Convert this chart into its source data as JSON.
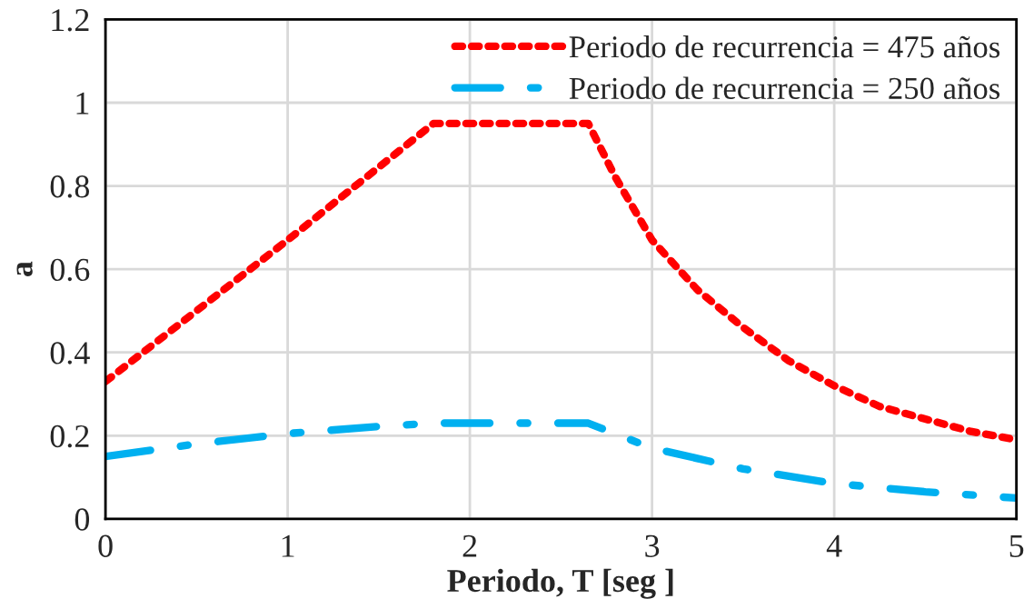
{
  "chart_data": {
    "type": "line",
    "xlabel": "Periodo, T [seg ]",
    "ylabel": "a",
    "xlim": [
      0,
      5
    ],
    "xticks": [
      0,
      1,
      2,
      3,
      4,
      5
    ],
    "ylim": [
      0,
      1.2
    ],
    "yticks": [
      0,
      0.2,
      0.4,
      0.6,
      0.8,
      1,
      1.2
    ],
    "grid": true,
    "legend": "top right",
    "marker": "none",
    "series": [
      {
        "name": "Periodo de recurrencia = 475 años",
        "color": "#ff0000",
        "line_style": "dotted",
        "x": [
          0,
          1,
          1.8,
          2.65,
          2.8,
          3,
          3.25,
          3.5,
          3.75,
          4,
          4.25,
          4.5,
          4.75,
          5
        ],
        "values": [
          0.33,
          0.67,
          0.95,
          0.95,
          0.82,
          0.67,
          0.55,
          0.46,
          0.38,
          0.32,
          0.27,
          0.24,
          0.21,
          0.19
        ]
      },
      {
        "name": "Periodo de recurrencia = 250 años",
        "color": "#00b0f0",
        "line_style": "dashdot",
        "x": [
          0,
          0.5,
          1,
          1.5,
          1.8,
          2.65,
          3,
          3.5,
          4,
          4.5,
          5
        ],
        "values": [
          0.15,
          0.18,
          0.205,
          0.222,
          0.23,
          0.23,
          0.17,
          0.12,
          0.085,
          0.065,
          0.05
        ]
      }
    ]
  }
}
